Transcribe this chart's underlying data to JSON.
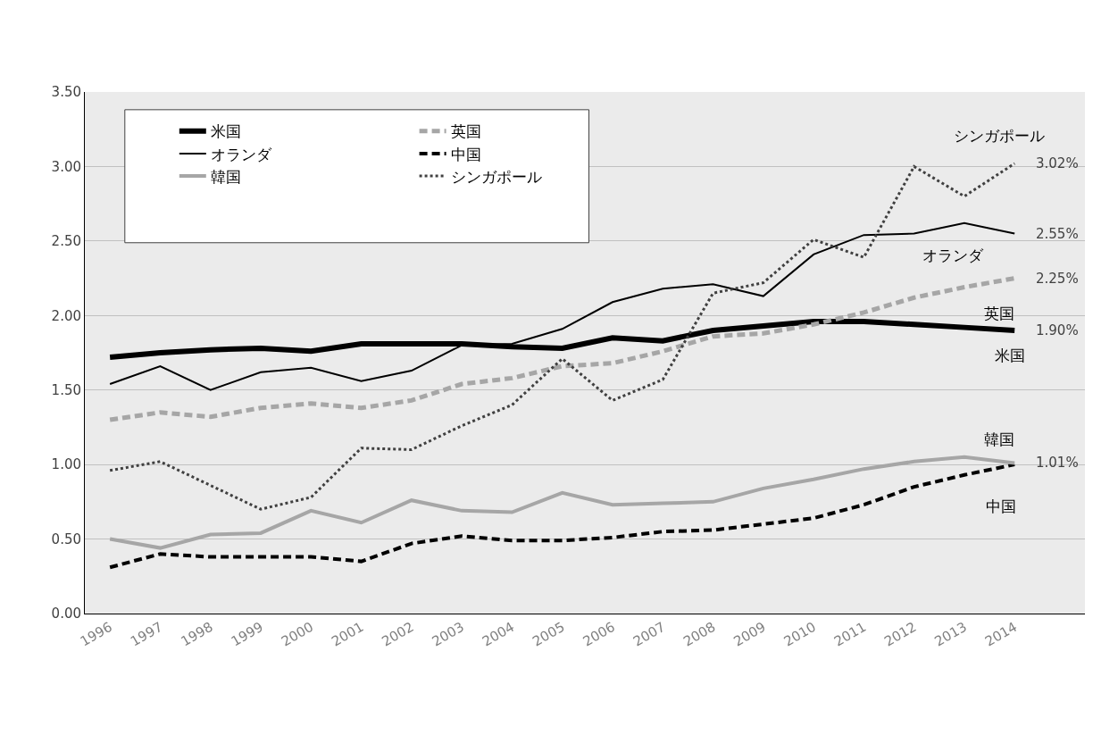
{
  "chart_data": {
    "type": "line",
    "categories": [
      "1996",
      "1997",
      "1998",
      "1999",
      "2000",
      "2001",
      "2002",
      "2003",
      "2004",
      "2005",
      "2006",
      "2007",
      "2008",
      "2009",
      "2010",
      "2011",
      "2012",
      "2013",
      "2014"
    ],
    "series": [
      {
        "name": "米国",
        "color": "#000000",
        "line_style": "solid",
        "values": [
          1.72,
          1.75,
          1.77,
          1.78,
          1.76,
          1.81,
          1.81,
          1.81,
          1.79,
          1.78,
          1.85,
          1.83,
          1.9,
          1.93,
          1.96,
          1.96,
          1.94,
          1.92,
          1.9
        ],
        "value_labels": [
          null,
          null,
          null,
          null,
          null,
          null,
          null,
          null,
          null,
          null,
          null,
          null,
          null,
          null,
          null,
          null,
          null,
          null,
          "1.90%"
        ]
      },
      {
        "name": "英国",
        "color": "#a6a6a6",
        "line_style": "dashed",
        "values": [
          1.3,
          1.35,
          1.32,
          1.38,
          1.41,
          1.38,
          1.43,
          1.54,
          1.58,
          1.66,
          1.68,
          1.76,
          1.86,
          1.88,
          1.94,
          2.02,
          2.12,
          2.19,
          2.25
        ],
        "value_labels": [
          null,
          null,
          null,
          null,
          null,
          null,
          null,
          null,
          null,
          null,
          null,
          null,
          null,
          null,
          null,
          null,
          null,
          null,
          "2.25%"
        ]
      },
      {
        "name": "オランダ",
        "color": "#000000",
        "line_style": "solid",
        "values": [
          1.54,
          1.66,
          1.5,
          1.62,
          1.65,
          1.56,
          1.63,
          1.8,
          1.81,
          1.91,
          2.09,
          2.18,
          2.21,
          2.13,
          2.41,
          2.54,
          2.55,
          2.62,
          2.55
        ],
        "value_labels": [
          null,
          null,
          null,
          null,
          null,
          null,
          null,
          null,
          null,
          null,
          null,
          null,
          null,
          null,
          null,
          null,
          null,
          null,
          "2.55%"
        ]
      },
      {
        "name": "中国",
        "color": "#000000",
        "line_style": "dashed",
        "values": [
          0.31,
          0.4,
          0.38,
          0.38,
          0.38,
          0.35,
          0.47,
          0.52,
          0.49,
          0.49,
          0.51,
          0.55,
          0.56,
          0.6,
          0.64,
          0.73,
          0.85,
          0.93,
          1.0
        ]
      },
      {
        "name": "韓国",
        "color": "#a6a6a6",
        "line_style": "solid",
        "values": [
          0.5,
          0.44,
          0.53,
          0.54,
          0.69,
          0.61,
          0.76,
          0.69,
          0.68,
          0.81,
          0.73,
          0.74,
          0.75,
          0.84,
          0.9,
          0.97,
          1.02,
          1.05,
          1.01
        ],
        "value_labels": [
          null,
          null,
          null,
          null,
          null,
          null,
          null,
          null,
          null,
          null,
          null,
          null,
          null,
          null,
          null,
          null,
          null,
          null,
          "1.01%"
        ]
      },
      {
        "name": "シンガポール",
        "color": "#404040",
        "line_style": "dotted",
        "values": [
          0.96,
          1.02,
          0.86,
          0.7,
          0.78,
          1.11,
          1.1,
          1.26,
          1.4,
          1.71,
          1.43,
          1.57,
          2.15,
          2.22,
          2.51,
          2.39,
          3.0,
          2.8,
          3.02
        ],
        "value_labels": [
          null,
          null,
          null,
          null,
          null,
          null,
          null,
          null,
          null,
          null,
          null,
          null,
          null,
          null,
          null,
          null,
          null,
          null,
          "3.02%"
        ]
      }
    ],
    "ylim": [
      0,
      3.5
    ],
    "yticks": [
      {
        "value": 0,
        "label": "0.00"
      },
      {
        "value": 0.5,
        "label": "0.50"
      },
      {
        "value": 1,
        "label": "1.00"
      },
      {
        "value": 1.5,
        "label": "1.50"
      },
      {
        "value": 2,
        "label": "2.00"
      },
      {
        "value": 2.5,
        "label": "2.50"
      },
      {
        "value": 3,
        "label": "3.00"
      },
      {
        "value": 3.5,
        "label": "3.50"
      }
    ],
    "grid": "y",
    "legend": "top left",
    "marker": "none"
  }
}
